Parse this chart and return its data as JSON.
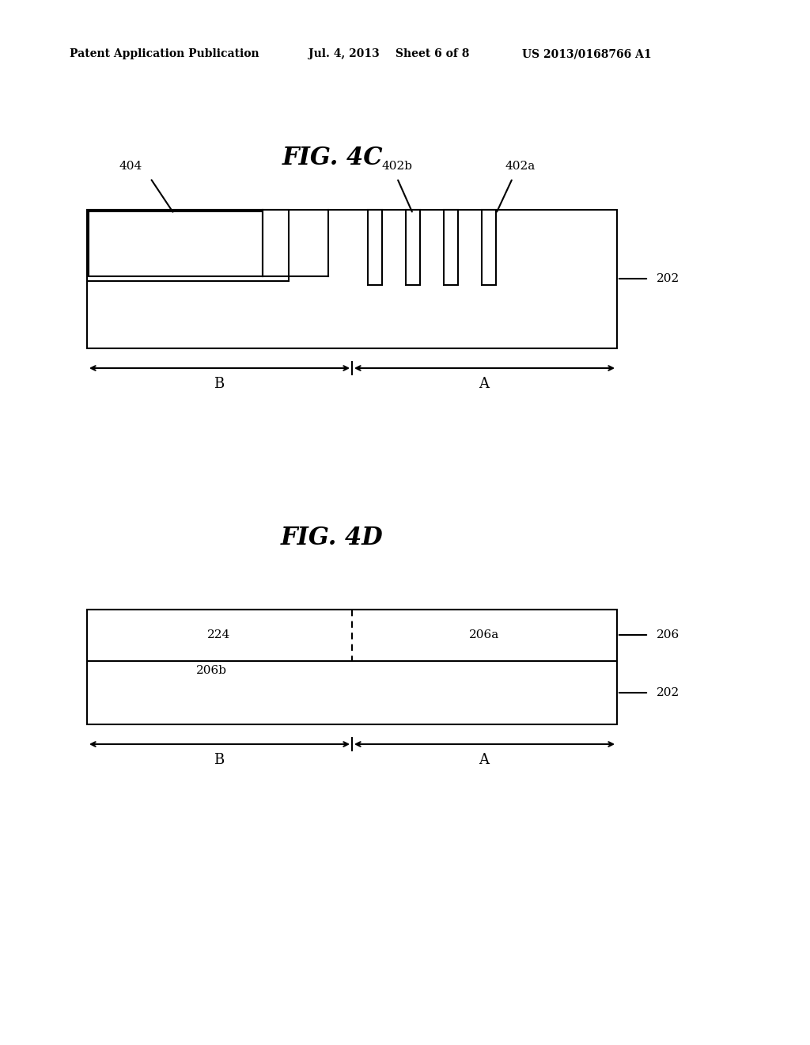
{
  "background_color": "#ffffff",
  "header_text": "Patent Application Publication",
  "header_date": "Jul. 4, 2013",
  "header_sheet": "Sheet 6 of 8",
  "header_patent": "US 2013/0168766 A1",
  "fig4c_title": "FIG. 4C",
  "fig4d_title": "FIG. 4D",
  "fig4c_label_202": "202",
  "fig4c_label_404": "404",
  "fig4c_label_402b": "402b",
  "fig4c_label_402a": "402a",
  "fig4c_label_A": "A",
  "fig4c_label_B": "B",
  "fig4d_label_202": "202",
  "fig4d_label_206": "206",
  "fig4d_label_206a": "206a",
  "fig4d_label_206b": "206b",
  "fig4d_label_224": "224",
  "fig4d_label_A": "A",
  "fig4d_label_B": "B"
}
